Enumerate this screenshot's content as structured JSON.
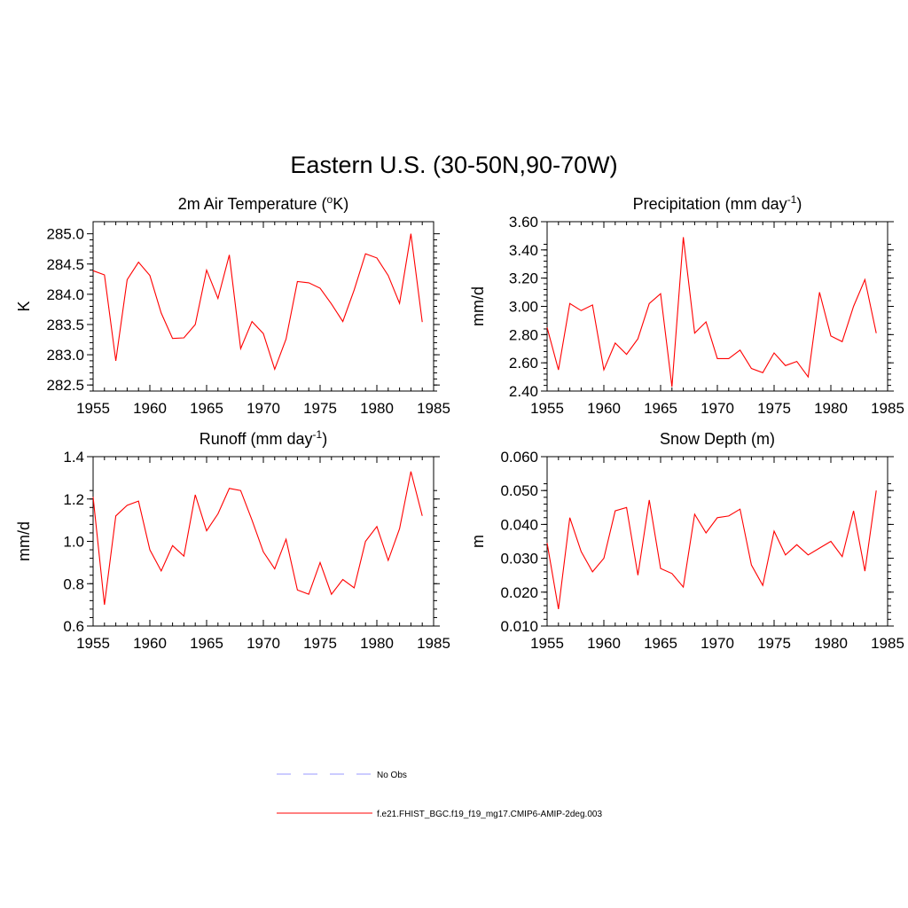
{
  "figure": {
    "title": "Eastern U.S. (30-50N,90-70W)"
  },
  "legend": {
    "entries": [
      {
        "label": "No Obs",
        "color": "#9999ff",
        "style": "dashed"
      },
      {
        "label": "f.e21.FHIST_BGC.f19_f19_mg17.CMIP6-AMIP-2deg.003",
        "color": "#ff0000",
        "style": "solid"
      }
    ]
  },
  "chart_data": [
    {
      "type": "line",
      "title": "2m Air Temperature (°K)",
      "title_parts": {
        "prefix": "2m Air Temperature (",
        "sup": "o",
        "suffix": "K)"
      },
      "ylabel": "K",
      "xlim": [
        1955,
        1985
      ],
      "ylim": [
        282.4,
        285.2
      ],
      "xticks": [
        1955,
        1960,
        1965,
        1970,
        1975,
        1980,
        1985
      ],
      "yticks": [
        "282.5",
        "283.0",
        "283.5",
        "284.0",
        "284.5",
        "285.0"
      ],
      "color": "#ff0000",
      "x": [
        1955,
        1956,
        1957,
        1958,
        1959,
        1960,
        1961,
        1962,
        1963,
        1964,
        1965,
        1966,
        1967,
        1968,
        1969,
        1970,
        1971,
        1972,
        1973,
        1974,
        1975,
        1976,
        1977,
        1978,
        1979,
        1980,
        1981,
        1982,
        1983,
        1984
      ],
      "values": [
        284.39,
        284.32,
        282.9,
        284.24,
        284.53,
        284.31,
        283.69,
        283.27,
        283.28,
        283.5,
        284.4,
        283.93,
        284.65,
        283.1,
        283.55,
        283.35,
        282.76,
        283.26,
        284.21,
        284.19,
        284.1,
        283.84,
        283.55,
        284.07,
        284.67,
        284.6,
        284.31,
        283.85,
        285.0,
        283.54
      ]
    },
    {
      "type": "line",
      "title": "Precipitation (mm day-1)",
      "title_parts": {
        "prefix": "Precipitation (mm day",
        "sup": "-1",
        "suffix": ")"
      },
      "ylabel": "mm/d",
      "xlim": [
        1955,
        1985
      ],
      "ylim": [
        2.4,
        3.6
      ],
      "xticks": [
        1955,
        1960,
        1965,
        1970,
        1975,
        1980,
        1985
      ],
      "yticks": [
        "2.40",
        "2.60",
        "2.80",
        "3.00",
        "3.20",
        "3.40",
        "3.60"
      ],
      "color": "#ff0000",
      "x": [
        1955,
        1956,
        1957,
        1958,
        1959,
        1960,
        1961,
        1962,
        1963,
        1964,
        1965,
        1966,
        1967,
        1968,
        1969,
        1970,
        1971,
        1972,
        1973,
        1974,
        1975,
        1976,
        1977,
        1978,
        1979,
        1980,
        1981,
        1982,
        1983,
        1984
      ],
      "values": [
        2.85,
        2.55,
        3.02,
        2.97,
        3.01,
        2.55,
        2.74,
        2.66,
        2.77,
        3.02,
        3.09,
        2.43,
        3.49,
        2.81,
        2.89,
        2.63,
        2.63,
        2.69,
        2.56,
        2.53,
        2.67,
        2.58,
        2.61,
        2.5,
        3.1,
        2.79,
        2.75,
        3.0,
        3.19,
        2.81
      ]
    },
    {
      "type": "line",
      "title": "Runoff (mm day-1)",
      "title_parts": {
        "prefix": "Runoff (mm day",
        "sup": "-1",
        "suffix": ")"
      },
      "ylabel": "mm/d",
      "xlim": [
        1955,
        1985
      ],
      "ylim": [
        0.6,
        1.4
      ],
      "xticks": [
        1955,
        1960,
        1965,
        1970,
        1975,
        1980,
        1985
      ],
      "yticks": [
        "0.6",
        "0.8",
        "1.0",
        "1.2",
        "1.4"
      ],
      "color": "#ff0000",
      "x": [
        1955,
        1956,
        1957,
        1958,
        1959,
        1960,
        1961,
        1962,
        1963,
        1964,
        1965,
        1966,
        1967,
        1968,
        1969,
        1970,
        1971,
        1972,
        1973,
        1974,
        1975,
        1976,
        1977,
        1978,
        1979,
        1980,
        1981,
        1982,
        1983,
        1984
      ],
      "values": [
        1.21,
        0.7,
        1.12,
        1.17,
        1.19,
        0.96,
        0.86,
        0.98,
        0.93,
        1.22,
        1.05,
        1.13,
        1.25,
        1.24,
        1.1,
        0.95,
        0.87,
        1.01,
        0.77,
        0.75,
        0.9,
        0.75,
        0.82,
        0.78,
        1.0,
        1.07,
        0.91,
        1.06,
        1.33,
        1.12
      ]
    },
    {
      "type": "line",
      "title": "Snow Depth (m)",
      "ylabel": "m",
      "xlim": [
        1955,
        1985
      ],
      "ylim": [
        0.01,
        0.06
      ],
      "xticks": [
        1955,
        1960,
        1965,
        1970,
        1975,
        1980,
        1985
      ],
      "yticks": [
        "0.010",
        "0.020",
        "0.030",
        "0.040",
        "0.050",
        "0.060"
      ],
      "color": "#ff0000",
      "x": [
        1955,
        1956,
        1957,
        1958,
        1959,
        1960,
        1961,
        1962,
        1963,
        1964,
        1965,
        1966,
        1967,
        1968,
        1969,
        1970,
        1971,
        1972,
        1973,
        1974,
        1975,
        1976,
        1977,
        1978,
        1979,
        1980,
        1981,
        1982,
        1983,
        1984
      ],
      "values": [
        0.0345,
        0.015,
        0.042,
        0.032,
        0.026,
        0.03,
        0.044,
        0.045,
        0.025,
        0.0472,
        0.027,
        0.0255,
        0.0215,
        0.043,
        0.0375,
        0.042,
        0.0425,
        0.0445,
        0.028,
        0.022,
        0.038,
        0.031,
        0.034,
        0.031,
        0.033,
        0.035,
        0.0305,
        0.044,
        0.0262,
        0.05
      ]
    }
  ]
}
